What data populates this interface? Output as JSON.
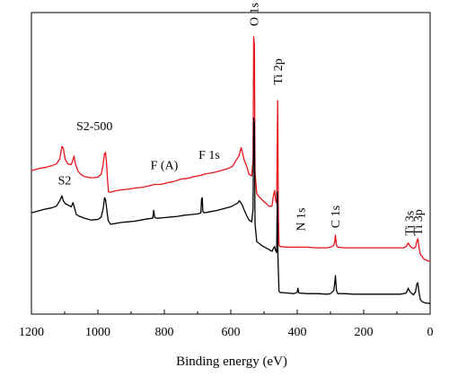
{
  "chart_data": {
    "type": "line",
    "xlabel": "Binding energy (eV)",
    "ylabel": "",
    "xlim": [
      1200,
      0
    ],
    "x_reversed": true,
    "y_units": "arbitrary intensity (no y-axis scale shown)",
    "ylim": [
      0,
      100
    ],
    "xticks": [
      "1200",
      "1000",
      "800",
      "600",
      "400",
      "200",
      "0"
    ],
    "xtick_values": [
      1200,
      1000,
      800,
      600,
      400,
      200,
      0
    ],
    "grid": false,
    "legend": "none (series labeled inline, upper-left)",
    "series": [
      {
        "name": "S2-500",
        "color": "#e8141c",
        "points": [
          [
            1200,
            47.6
          ],
          [
            1180,
            48.2
          ],
          [
            1160,
            48.6
          ],
          [
            1140,
            49.2
          ],
          [
            1125,
            49.8
          ],
          [
            1115,
            51.4
          ],
          [
            1108,
            55.6
          ],
          [
            1104,
            55.0
          ],
          [
            1098,
            51.2
          ],
          [
            1090,
            49.8
          ],
          [
            1080,
            49.6
          ],
          [
            1075,
            51.2
          ],
          [
            1072,
            52.4
          ],
          [
            1068,
            50.0
          ],
          [
            1060,
            47.4
          ],
          [
            1050,
            46.2
          ],
          [
            1040,
            45.6
          ],
          [
            1020,
            45.2
          ],
          [
            1000,
            45.4
          ],
          [
            990,
            46.4
          ],
          [
            985,
            49.0
          ],
          [
            980,
            53.2
          ],
          [
            977,
            53.6
          ],
          [
            974,
            50.4
          ],
          [
            971,
            44.8
          ],
          [
            968,
            40.6
          ],
          [
            963,
            40.4
          ],
          [
            950,
            40.8
          ],
          [
            930,
            41.2
          ],
          [
            910,
            41.4
          ],
          [
            890,
            41.8
          ],
          [
            870,
            42.0
          ],
          [
            850,
            42.4
          ],
          [
            830,
            43.0
          ],
          [
            810,
            43.0
          ],
          [
            790,
            43.6
          ],
          [
            770,
            44.0
          ],
          [
            750,
            44.8
          ],
          [
            730,
            45.0
          ],
          [
            710,
            45.6
          ],
          [
            690,
            46.0
          ],
          [
            680,
            46.4
          ],
          [
            670,
            46.6
          ],
          [
            650,
            47.0
          ],
          [
            630,
            47.6
          ],
          [
            610,
            48.2
          ],
          [
            595,
            49.0
          ],
          [
            585,
            50.8
          ],
          [
            575,
            52.6
          ],
          [
            569,
            55.2
          ],
          [
            565,
            53.6
          ],
          [
            560,
            51.2
          ],
          [
            552,
            49.0
          ],
          [
            545,
            46.4
          ],
          [
            537,
            45.8
          ],
          [
            533,
            51.0
          ],
          [
            531,
            92.0
          ],
          [
            529,
            89.0
          ],
          [
            527,
            47.0
          ],
          [
            522,
            40.0
          ],
          [
            514,
            38.8
          ],
          [
            505,
            37.8
          ],
          [
            495,
            36.8
          ],
          [
            485,
            35.8
          ],
          [
            476,
            35.8
          ],
          [
            472,
            39.2
          ],
          [
            468,
            41.0
          ],
          [
            465,
            37.4
          ],
          [
            462,
            36.8
          ],
          [
            459,
            70.8
          ],
          [
            458,
            59.0
          ],
          [
            457,
            35.0
          ],
          [
            455,
            23.0
          ],
          [
            452,
            22.4
          ],
          [
            430,
            22.2
          ],
          [
            400,
            22.2
          ],
          [
            370,
            22.2
          ],
          [
            340,
            22.0
          ],
          [
            310,
            22.0
          ],
          [
            300,
            22.2
          ],
          [
            290,
            22.8
          ],
          [
            287,
            24.2
          ],
          [
            285,
            26.2
          ],
          [
            284,
            25.0
          ],
          [
            282,
            22.8
          ],
          [
            278,
            22.2
          ],
          [
            260,
            22.0
          ],
          [
            230,
            22.0
          ],
          [
            200,
            22.0
          ],
          [
            170,
            22.0
          ],
          [
            140,
            22.0
          ],
          [
            110,
            22.0
          ],
          [
            90,
            22.0
          ],
          [
            80,
            22.0
          ],
          [
            72,
            22.4
          ],
          [
            66,
            23.6
          ],
          [
            62,
            22.8
          ],
          [
            57,
            22.2
          ],
          [
            50,
            21.8
          ],
          [
            44,
            22.2
          ],
          [
            40,
            24.2
          ],
          [
            37,
            25.0
          ],
          [
            34,
            22.6
          ],
          [
            30,
            20.0
          ],
          [
            25,
            19.2
          ],
          [
            18,
            18.2
          ],
          [
            10,
            17.8
          ],
          [
            4,
            17.6
          ],
          [
            0,
            17.6
          ]
        ]
      },
      {
        "name": "S2",
        "color": "#000000",
        "points": [
          [
            1200,
            33.6
          ],
          [
            1180,
            34.2
          ],
          [
            1160,
            34.8
          ],
          [
            1140,
            35.2
          ],
          [
            1125,
            35.8
          ],
          [
            1115,
            37.6
          ],
          [
            1108,
            39.2
          ],
          [
            1104,
            37.6
          ],
          [
            1098,
            36.6
          ],
          [
            1090,
            36.2
          ],
          [
            1080,
            35.6
          ],
          [
            1075,
            37.0
          ],
          [
            1072,
            35.8
          ],
          [
            1065,
            33.0
          ],
          [
            1055,
            32.4
          ],
          [
            1040,
            31.8
          ],
          [
            1020,
            31.2
          ],
          [
            1000,
            31.4
          ],
          [
            990,
            32.2
          ],
          [
            984,
            35.0
          ],
          [
            980,
            38.6
          ],
          [
            977,
            38.0
          ],
          [
            973,
            34.4
          ],
          [
            969,
            31.0
          ],
          [
            962,
            29.8
          ],
          [
            950,
            30.0
          ],
          [
            930,
            30.4
          ],
          [
            910,
            30.6
          ],
          [
            890,
            30.8
          ],
          [
            870,
            31.2
          ],
          [
            850,
            31.6
          ],
          [
            835,
            31.8
          ],
          [
            832,
            34.4
          ],
          [
            829,
            32.0
          ],
          [
            820,
            31.8
          ],
          [
            800,
            32.0
          ],
          [
            780,
            32.2
          ],
          [
            760,
            32.4
          ],
          [
            740,
            32.8
          ],
          [
            720,
            33.0
          ],
          [
            700,
            33.2
          ],
          [
            690,
            33.6
          ],
          [
            688,
            38.0
          ],
          [
            686,
            38.6
          ],
          [
            684,
            34.0
          ],
          [
            680,
            33.6
          ],
          [
            660,
            34.0
          ],
          [
            640,
            34.4
          ],
          [
            620,
            35.0
          ],
          [
            600,
            35.6
          ],
          [
            590,
            36.2
          ],
          [
            580,
            36.8
          ],
          [
            574,
            37.6
          ],
          [
            569,
            36.8
          ],
          [
            565,
            36.0
          ],
          [
            560,
            34.6
          ],
          [
            552,
            32.6
          ],
          [
            545,
            31.2
          ],
          [
            537,
            30.6
          ],
          [
            533,
            34.8
          ],
          [
            531,
            65.0
          ],
          [
            529,
            62.6
          ],
          [
            527,
            30.0
          ],
          [
            522,
            24.0
          ],
          [
            514,
            23.4
          ],
          [
            505,
            22.6
          ],
          [
            495,
            22.0
          ],
          [
            485,
            21.4
          ],
          [
            476,
            20.8
          ],
          [
            472,
            21.8
          ],
          [
            468,
            22.4
          ],
          [
            465,
            21.0
          ],
          [
            462,
            20.4
          ],
          [
            460,
            40.6
          ],
          [
            459,
            36.0
          ],
          [
            458,
            19.0
          ],
          [
            455,
            7.6
          ],
          [
            452,
            7.2
          ],
          [
            430,
            7.0
          ],
          [
            410,
            6.8
          ],
          [
            400,
            7.2
          ],
          [
            398,
            8.6
          ],
          [
            395,
            7.0
          ],
          [
            370,
            6.8
          ],
          [
            340,
            6.8
          ],
          [
            310,
            6.6
          ],
          [
            300,
            6.8
          ],
          [
            290,
            7.8
          ],
          [
            287,
            10.4
          ],
          [
            285,
            12.8
          ],
          [
            284,
            11.0
          ],
          [
            282,
            7.8
          ],
          [
            278,
            6.8
          ],
          [
            260,
            6.8
          ],
          [
            230,
            6.6
          ],
          [
            200,
            6.6
          ],
          [
            170,
            6.6
          ],
          [
            140,
            6.6
          ],
          [
            110,
            6.6
          ],
          [
            90,
            6.6
          ],
          [
            80,
            6.8
          ],
          [
            72,
            7.0
          ],
          [
            66,
            8.6
          ],
          [
            62,
            7.6
          ],
          [
            57,
            7.0
          ],
          [
            50,
            6.4
          ],
          [
            44,
            7.4
          ],
          [
            40,
            10.0
          ],
          [
            37,
            10.4
          ],
          [
            34,
            7.6
          ],
          [
            30,
            5.0
          ],
          [
            25,
            4.2
          ],
          [
            18,
            3.8
          ],
          [
            10,
            3.6
          ],
          [
            4,
            3.6
          ],
          [
            0,
            3.4
          ]
        ]
      }
    ],
    "series_labels": [
      {
        "text": "S2-500",
        "x": 1065,
        "y": 61
      },
      {
        "text": "S2",
        "x": 1120,
        "y": 43
      }
    ],
    "annotations": [
      {
        "text": "O 1s",
        "x": 531,
        "y": 95.5,
        "rotate": true
      },
      {
        "text": "Ti 2p",
        "x": 459,
        "y": 76,
        "rotate": true
      },
      {
        "text": "F (A)",
        "x": 800,
        "y": 48,
        "rotate": false
      },
      {
        "text": "F 1s",
        "x": 665,
        "y": 51.5,
        "rotate": false
      },
      {
        "text": "N 1s",
        "x": 390,
        "y": 27.5,
        "rotate": true
      },
      {
        "text": "C 1s",
        "x": 287,
        "y": 28.5,
        "rotate": true
      },
      {
        "text": "Ti 3s",
        "x": 63,
        "y": 26,
        "rotate": true
      },
      {
        "text": "Ti 3p",
        "x": 38,
        "y": 26,
        "rotate": true
      }
    ]
  }
}
